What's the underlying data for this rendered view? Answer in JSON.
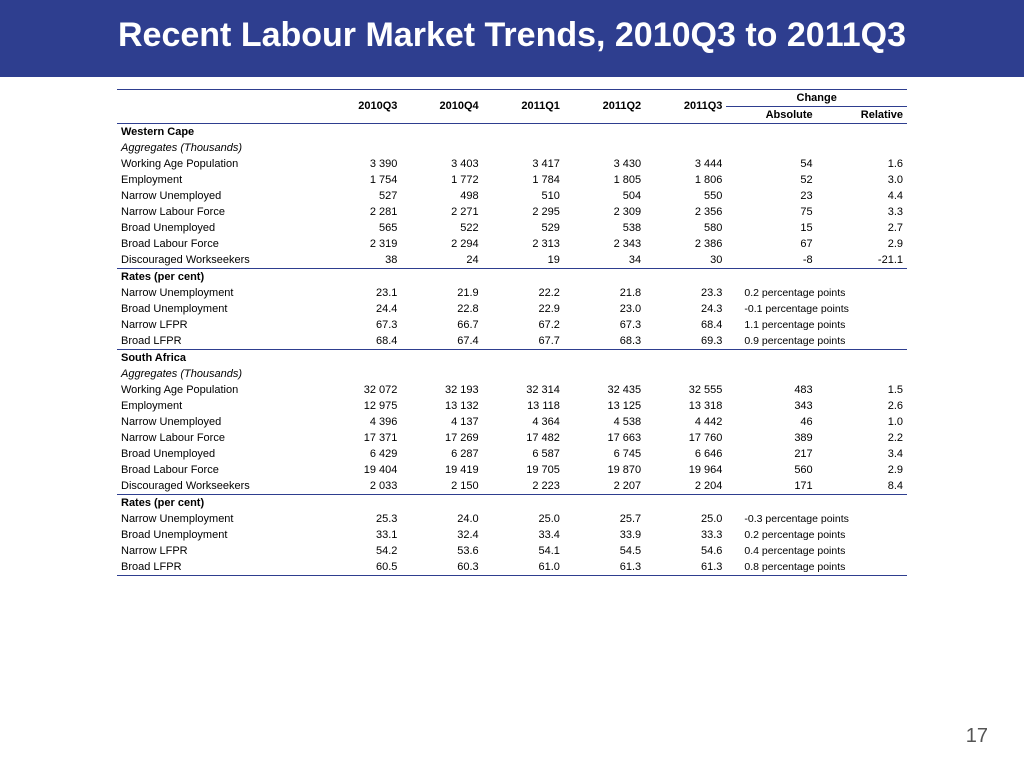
{
  "title": "Recent Labour Market Trends, 2010Q3 to 2011Q3",
  "page_number": "17",
  "colors": {
    "header_bg": "#2e3e8f",
    "rule": "#2e3e8f",
    "page_bg": "#ffffff"
  },
  "columns": {
    "q1": "2010Q3",
    "q2": "2010Q4",
    "q3": "2011Q1",
    "q4": "2011Q2",
    "q5": "2011Q3",
    "change": "Change",
    "abs": "Absolute",
    "rel": "Relative"
  },
  "sections": [
    {
      "header": "Western Cape",
      "sub": "Aggregates (Thousands)",
      "rows": [
        {
          "label": "Working Age Population",
          "v": [
            "3 390",
            "3 403",
            "3 417",
            "3 430",
            "3 444",
            "54",
            "1.6"
          ]
        },
        {
          "label": "Employment",
          "v": [
            "1 754",
            "1 772",
            "1 784",
            "1 805",
            "1 806",
            "52",
            "3.0"
          ]
        },
        {
          "label": "Narrow Unemployed",
          "v": [
            "527",
            "498",
            "510",
            "504",
            "550",
            "23",
            "4.4"
          ]
        },
        {
          "label": "Narrow Labour Force",
          "v": [
            "2 281",
            "2 271",
            "2 295",
            "2 309",
            "2 356",
            "75",
            "3.3"
          ]
        },
        {
          "label": "Broad Unemployed",
          "v": [
            "565",
            "522",
            "529",
            "538",
            "580",
            "15",
            "2.7"
          ]
        },
        {
          "label": "Broad Labour Force",
          "v": [
            "2 319",
            "2 294",
            "2 313",
            "2 343",
            "2 386",
            "67",
            "2.9"
          ]
        },
        {
          "label": "Discouraged Workseekers",
          "v": [
            "38",
            "24",
            "19",
            "34",
            "30",
            "-8",
            "-21.1"
          ]
        }
      ],
      "rates_header": "Rates (per cent)",
      "rates": [
        {
          "label": "Narrow Unemployment",
          "v": [
            "23.1",
            "21.9",
            "22.2",
            "21.8",
            "23.3"
          ],
          "chg": "0.2 percentage points"
        },
        {
          "label": "Broad Unemployment",
          "v": [
            "24.4",
            "22.8",
            "22.9",
            "23.0",
            "24.3"
          ],
          "chg": "-0.1 percentage points"
        },
        {
          "label": "Narrow LFPR",
          "v": [
            "67.3",
            "66.7",
            "67.2",
            "67.3",
            "68.4"
          ],
          "chg": "1.1 percentage points"
        },
        {
          "label": "Broad LFPR",
          "v": [
            "68.4",
            "67.4",
            "67.7",
            "68.3",
            "69.3"
          ],
          "chg": "0.9 percentage points"
        }
      ]
    },
    {
      "header": "South Africa",
      "sub": "Aggregates (Thousands)",
      "rows": [
        {
          "label": "Working Age Population",
          "v": [
            "32 072",
            "32 193",
            "32 314",
            "32 435",
            "32 555",
            "483",
            "1.5"
          ]
        },
        {
          "label": "Employment",
          "v": [
            "12 975",
            "13 132",
            "13 118",
            "13 125",
            "13 318",
            "343",
            "2.6"
          ]
        },
        {
          "label": "Narrow Unemployed",
          "v": [
            "4 396",
            "4 137",
            "4 364",
            "4 538",
            "4 442",
            "46",
            "1.0"
          ]
        },
        {
          "label": "Narrow Labour Force",
          "v": [
            "17 371",
            "17 269",
            "17 482",
            "17 663",
            "17 760",
            "389",
            "2.2"
          ]
        },
        {
          "label": "Broad Unemployed",
          "v": [
            "6 429",
            "6 287",
            "6 587",
            "6 745",
            "6 646",
            "217",
            "3.4"
          ]
        },
        {
          "label": "Broad Labour Force",
          "v": [
            "19 404",
            "19 419",
            "19 705",
            "19 870",
            "19 964",
            "560",
            "2.9"
          ]
        },
        {
          "label": "Discouraged Workseekers",
          "v": [
            "2 033",
            "2 150",
            "2 223",
            "2 207",
            "2 204",
            "171",
            "8.4"
          ]
        }
      ],
      "rates_header": "Rates (per cent)",
      "rates": [
        {
          "label": "Narrow Unemployment",
          "v": [
            "25.3",
            "24.0",
            "25.0",
            "25.7",
            "25.0"
          ],
          "chg": "-0.3 percentage points"
        },
        {
          "label": "Broad Unemployment",
          "v": [
            "33.1",
            "32.4",
            "33.4",
            "33.9",
            "33.3"
          ],
          "chg": "0.2 percentage points"
        },
        {
          "label": "Narrow LFPR",
          "v": [
            "54.2",
            "53.6",
            "54.1",
            "54.5",
            "54.6"
          ],
          "chg": "0.4 percentage points"
        },
        {
          "label": "Broad LFPR",
          "v": [
            "60.5",
            "60.3",
            "61.0",
            "61.3",
            "61.3"
          ],
          "chg": "0.8 percentage points"
        }
      ]
    }
  ]
}
